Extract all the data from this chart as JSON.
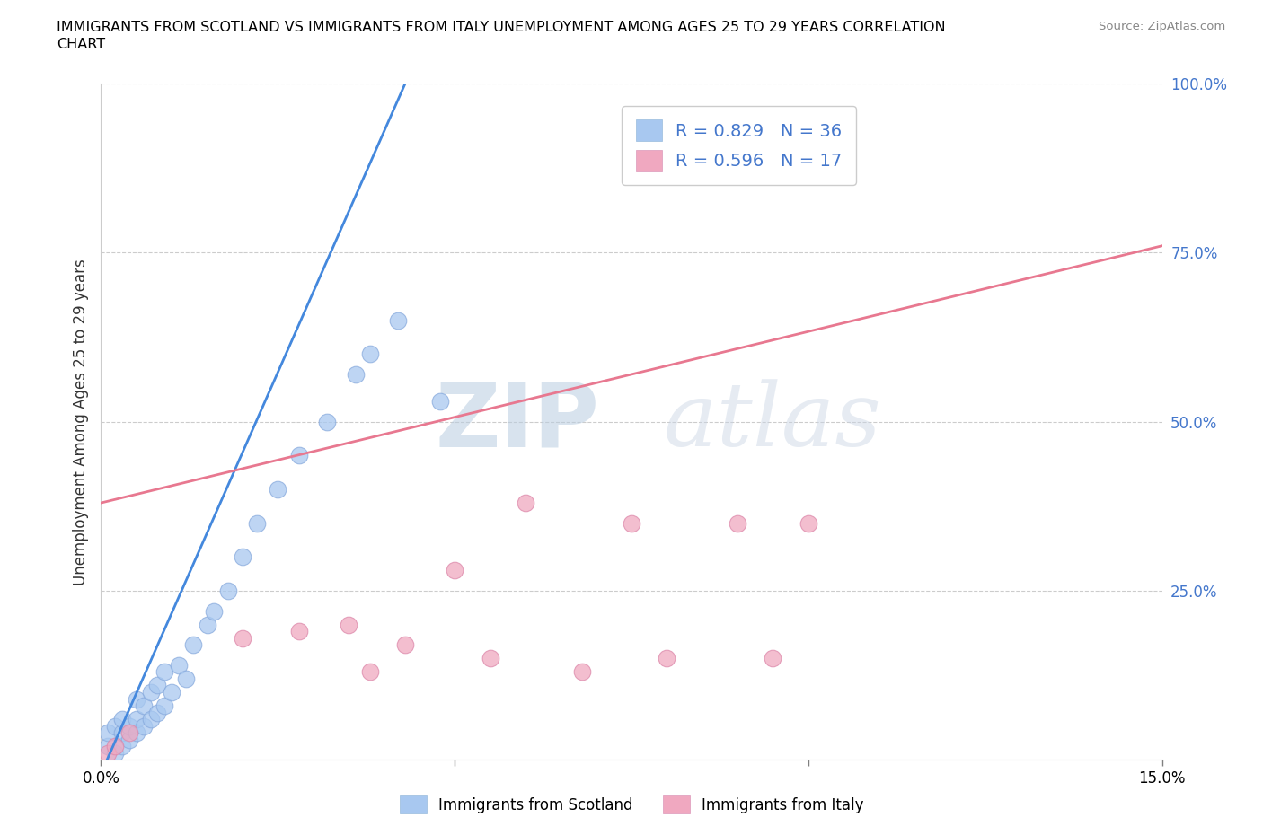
{
  "title_line1": "IMMIGRANTS FROM SCOTLAND VS IMMIGRANTS FROM ITALY UNEMPLOYMENT AMONG AGES 25 TO 29 YEARS CORRELATION",
  "title_line2": "CHART",
  "source": "Source: ZipAtlas.com",
  "ylabel": "Unemployment Among Ages 25 to 29 years",
  "xlim": [
    0,
    0.15
  ],
  "ylim": [
    0,
    1.0
  ],
  "xticks": [
    0.0,
    0.05,
    0.1,
    0.15
  ],
  "xtick_labels": [
    "0.0%",
    "",
    "",
    "15.0%"
  ],
  "yticks_right": [
    0.25,
    0.5,
    0.75,
    1.0
  ],
  "ytick_right_labels": [
    "25.0%",
    "50.0%",
    "75.0%",
    "100.0%"
  ],
  "scotland_color": "#a8c8f0",
  "italy_color": "#f0a8c0",
  "scotland_line_color": "#4488dd",
  "italy_line_color": "#e87890",
  "legend_text_color": "#4477cc",
  "watermark_zip": "ZIP",
  "watermark_atlas": "atlas",
  "watermark_color": "#c8d8e8",
  "R_scotland": 0.829,
  "N_scotland": 36,
  "R_italy": 0.596,
  "N_italy": 17,
  "scotland_x": [
    0.001,
    0.001,
    0.002,
    0.002,
    0.003,
    0.003,
    0.003,
    0.004,
    0.004,
    0.005,
    0.005,
    0.005,
    0.006,
    0.006,
    0.007,
    0.007,
    0.008,
    0.008,
    0.009,
    0.009,
    0.01,
    0.011,
    0.012,
    0.013,
    0.015,
    0.016,
    0.018,
    0.02,
    0.022,
    0.025,
    0.028,
    0.032,
    0.036,
    0.038,
    0.042,
    0.048
  ],
  "scotland_y": [
    0.02,
    0.04,
    0.01,
    0.05,
    0.02,
    0.04,
    0.06,
    0.03,
    0.05,
    0.04,
    0.06,
    0.09,
    0.05,
    0.08,
    0.06,
    0.1,
    0.07,
    0.11,
    0.08,
    0.13,
    0.1,
    0.14,
    0.12,
    0.17,
    0.2,
    0.22,
    0.25,
    0.3,
    0.35,
    0.4,
    0.45,
    0.5,
    0.57,
    0.6,
    0.65,
    0.53
  ],
  "italy_x": [
    0.001,
    0.002,
    0.004,
    0.02,
    0.028,
    0.035,
    0.038,
    0.043,
    0.05,
    0.055,
    0.06,
    0.068,
    0.075,
    0.08,
    0.09,
    0.095,
    0.1
  ],
  "italy_y": [
    0.01,
    0.02,
    0.04,
    0.18,
    0.19,
    0.2,
    0.13,
    0.17,
    0.28,
    0.15,
    0.38,
    0.13,
    0.35,
    0.15,
    0.35,
    0.15,
    0.35
  ],
  "scotland_line_x0": 0.0,
  "scotland_line_y0": -0.02,
  "scotland_line_x1": 0.043,
  "scotland_line_y1": 1.0,
  "italy_line_x0": 0.0,
  "italy_line_y0": 0.38,
  "italy_line_x1": 0.15,
  "italy_line_y1": 0.76
}
